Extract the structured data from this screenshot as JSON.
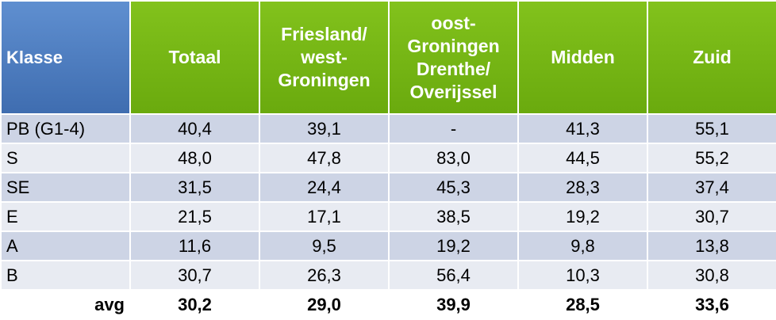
{
  "chart_data": {
    "type": "table",
    "columns": [
      [
        "Klasse"
      ],
      [
        "Totaal"
      ],
      [
        "Friesland/",
        "west-",
        "Groningen"
      ],
      [
        "oost-",
        "Groningen",
        "Drenthe/",
        "Overijssel"
      ],
      [
        "Midden"
      ],
      [
        "Zuid"
      ]
    ],
    "rows": [
      {
        "label": "PB (G1-4)",
        "values": [
          "40,4",
          "39,1",
          "-",
          "41,3",
          "55,1"
        ]
      },
      {
        "label": "S",
        "values": [
          "48,0",
          "47,8",
          "83,0",
          "44,5",
          "55,2"
        ]
      },
      {
        "label": "SE",
        "values": [
          "31,5",
          "24,4",
          "45,3",
          "28,3",
          "37,4"
        ]
      },
      {
        "label": "E",
        "values": [
          "21,5",
          "17,1",
          "38,5",
          "19,2",
          "30,7"
        ]
      },
      {
        "label": "A",
        "values": [
          "11,6",
          "9,5",
          "19,2",
          "9,8",
          "13,8"
        ]
      },
      {
        "label": "B",
        "values": [
          "30,7",
          "26,3",
          "56,4",
          "10,3",
          "30,8"
        ]
      }
    ],
    "summary": {
      "label": "avg",
      "values": [
        "30,2",
        "29,0",
        "39,9",
        "28,5",
        "33,6"
      ]
    }
  },
  "colors": {
    "header_label": "#4f7fc2",
    "header_data": "#76b614",
    "row_odd": "#cdd4e5",
    "row_even": "#e8ebf2"
  }
}
